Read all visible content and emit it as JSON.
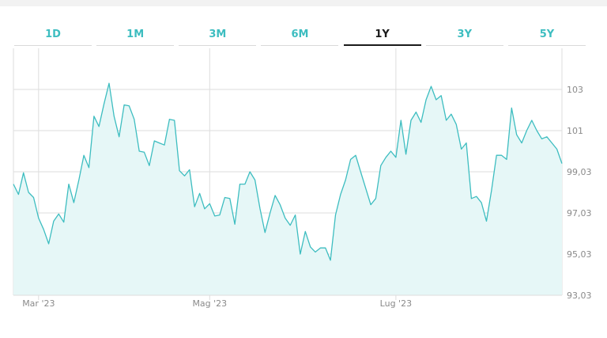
{
  "tabs": [
    {
      "label": "1D",
      "active": false
    },
    {
      "label": "1M",
      "active": false
    },
    {
      "label": "3M",
      "active": false
    },
    {
      "label": "6M",
      "active": false
    },
    {
      "label": "1Y",
      "active": true
    },
    {
      "label": "3Y",
      "active": false
    },
    {
      "label": "5Y",
      "active": false
    }
  ],
  "colors": {
    "accent": "#3dbdc0",
    "area_fill": "#e6f7f7",
    "grid": "#dddddd",
    "active_tab": "#1a1a1a"
  },
  "chart_data": {
    "type": "area",
    "ylim": [
      93.03,
      105.03
    ],
    "y_ticks": [
      "93,03",
      "95,03",
      "97,03",
      "99,03",
      "101",
      "103"
    ],
    "y_tick_values": [
      93.03,
      95.03,
      97.03,
      99.03,
      101.03,
      103.03
    ],
    "x_ticks": [
      {
        "label": "Mar '23",
        "index": 5
      },
      {
        "label": "Mag '23",
        "index": 39
      },
      {
        "label": "Lug '23",
        "index": 76
      }
    ],
    "grid": true,
    "values": [
      98.43,
      97.93,
      98.98,
      98.03,
      97.78,
      96.78,
      96.23,
      95.53,
      96.63,
      96.98,
      96.58,
      98.43,
      97.53,
      98.63,
      99.83,
      99.23,
      101.73,
      101.23,
      102.33,
      103.33,
      101.73,
      100.73,
      102.28,
      102.23,
      101.58,
      100.03,
      99.98,
      99.33,
      100.53,
      100.43,
      100.33,
      101.58,
      101.53,
      99.08,
      98.83,
      99.13,
      97.33,
      97.98,
      97.23,
      97.48,
      96.88,
      96.93,
      97.78,
      97.73,
      96.48,
      98.43,
      98.43,
      99.03,
      98.63,
      97.23,
      96.08,
      97.03,
      97.88,
      97.43,
      96.78,
      96.43,
      96.93,
      95.03,
      96.13,
      95.38,
      95.13,
      95.33,
      95.33,
      94.73,
      96.93,
      97.93,
      98.63,
      99.63,
      99.83,
      99.03,
      98.23,
      97.43,
      97.73,
      99.33,
      99.73,
      100.03,
      99.73,
      101.53,
      99.88,
      101.53,
      101.93,
      101.43,
      102.53,
      103.18,
      102.53,
      102.73,
      101.53,
      101.83,
      101.33,
      100.13,
      100.43,
      97.73,
      97.83,
      97.53,
      96.63,
      98.13,
      99.83,
      99.83,
      99.63,
      102.13,
      100.83,
      100.43,
      101.03,
      101.53,
      101.03,
      100.63,
      100.73,
      100.43,
      100.13,
      99.43
    ]
  }
}
